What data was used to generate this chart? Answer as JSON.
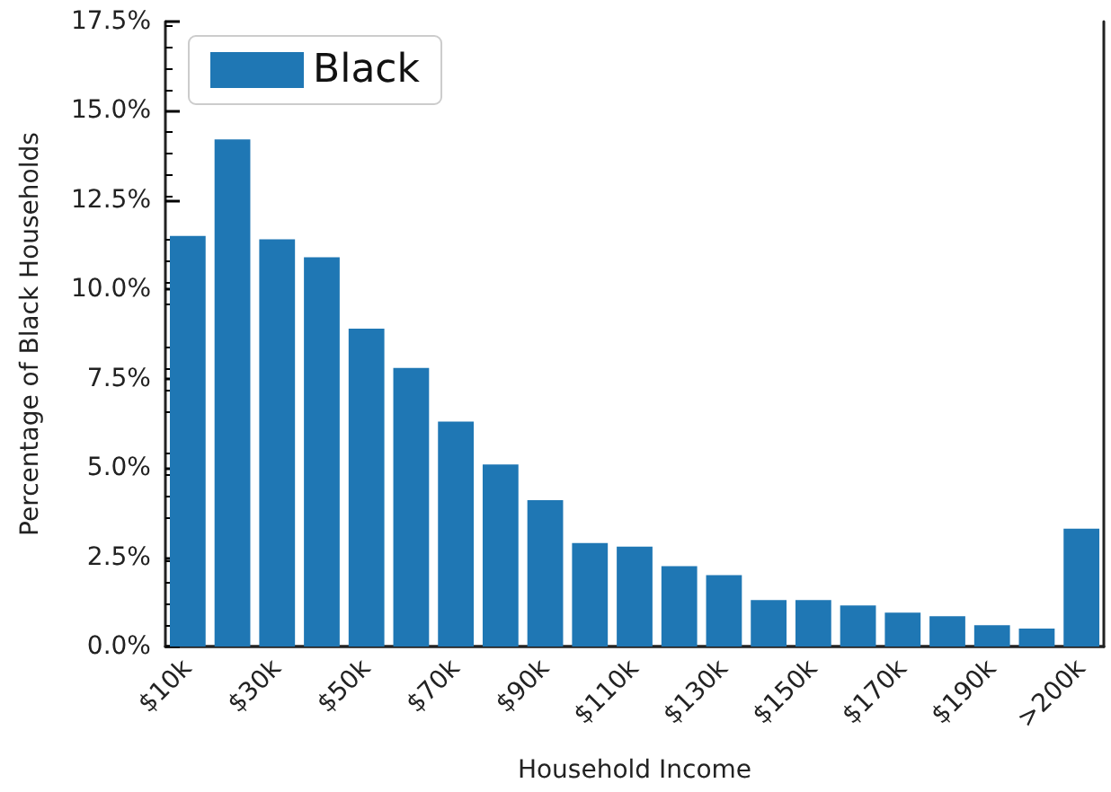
{
  "chart_data": {
    "type": "bar",
    "xlabel": "Household Income",
    "ylabel": "Percentage of Black Households",
    "categories": [
      "$10k",
      null,
      "$30k",
      null,
      "$50k",
      null,
      "$70k",
      null,
      "$90k",
      null,
      "$110k",
      null,
      "$130k",
      null,
      "$150k",
      null,
      "$170k",
      null,
      "$190k",
      null,
      ">200k"
    ],
    "series": [
      {
        "name": "Black",
        "color": "#1f77b4",
        "values": [
          11.5,
          14.2,
          11.4,
          10.9,
          8.9,
          7.8,
          6.3,
          5.1,
          4.1,
          2.9,
          2.8,
          2.25,
          2.0,
          1.3,
          1.3,
          1.15,
          0.95,
          0.85,
          0.6,
          0.5,
          3.3
        ]
      }
    ],
    "ylim": [
      0,
      17.5
    ],
    "yticks": [
      {
        "value": 0,
        "label": "0.0%"
      },
      {
        "value": 2.5,
        "label": "2.5%"
      },
      {
        "value": 5,
        "label": "5.0%"
      },
      {
        "value": 7.5,
        "label": "7.5%"
      },
      {
        "value": 10,
        "label": "10.0%"
      },
      {
        "value": 12.5,
        "label": "12.5%"
      },
      {
        "value": 15,
        "label": "15.0%"
      },
      {
        "value": 17.5,
        "label": "17.5%"
      }
    ],
    "legend": "top left",
    "grid": false
  }
}
